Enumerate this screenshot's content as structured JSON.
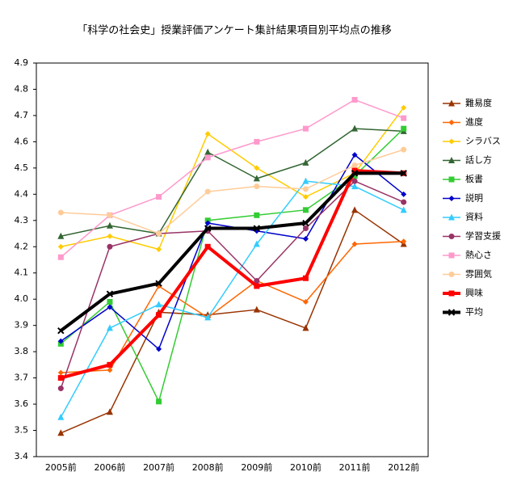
{
  "chart_data": {
    "type": "line",
    "title": "「科学の社会史」授業評価アンケート集計結果項目別平均点の推移",
    "categories": [
      "2005前",
      "2006前",
      "2007前",
      "2008前",
      "2009前",
      "2010前",
      "2011前",
      "2012前"
    ],
    "ylim": [
      3.4,
      4.9
    ],
    "yticks": [
      3.4,
      3.5,
      3.6,
      3.7,
      3.8,
      3.9,
      {
        "value": 4,
        "label": "4.0"
      },
      4.1,
      4.2,
      4.3,
      4.4,
      4.5,
      4.6,
      4.7,
      4.8,
      4.9
    ],
    "grid": false,
    "legend": "right",
    "series": [
      {
        "name": "難易度",
        "color": "#993300",
        "marker": "triangle",
        "line_width": 1.5,
        "values": [
          3.49,
          3.57,
          3.95,
          3.94,
          3.96,
          3.89,
          4.34,
          4.21
        ]
      },
      {
        "name": "進度",
        "color": "#ff6600",
        "marker": "diamond",
        "line_width": 1.5,
        "values": [
          3.72,
          3.73,
          4.05,
          3.93,
          4.07,
          3.99,
          4.21,
          4.22
        ]
      },
      {
        "name": "シラバス",
        "color": "#ffcc00",
        "marker": "diamond",
        "line_width": 1.5,
        "values": [
          4.2,
          4.24,
          4.19,
          4.63,
          4.5,
          4.39,
          4.48,
          4.73
        ]
      },
      {
        "name": "話し方",
        "color": "#336633",
        "marker": "triangle",
        "line_width": 1.5,
        "values": [
          4.24,
          4.28,
          4.25,
          4.56,
          4.46,
          4.52,
          4.65,
          4.64
        ]
      },
      {
        "name": "板書",
        "color": "#33cc33",
        "marker": "square",
        "line_width": 1.5,
        "values": [
          3.83,
          3.99,
          3.61,
          4.3,
          4.32,
          4.34,
          4.47,
          4.65
        ]
      },
      {
        "name": "説明",
        "color": "#0000cc",
        "marker": "diamond",
        "line_width": 1.5,
        "values": [
          3.84,
          3.97,
          3.81,
          4.29,
          4.26,
          4.23,
          4.55,
          4.4
        ]
      },
      {
        "name": "資料",
        "color": "#33ccff",
        "marker": "triangle",
        "line_width": 1.5,
        "values": [
          3.55,
          3.89,
          3.98,
          3.93,
          4.21,
          4.45,
          4.43,
          4.34
        ]
      },
      {
        "name": "学習支援",
        "color": "#993366",
        "marker": "circle",
        "line_width": 1.5,
        "values": [
          3.66,
          4.2,
          4.25,
          4.26,
          4.07,
          4.27,
          4.45,
          4.37
        ]
      },
      {
        "name": "熱心さ",
        "color": "#ff99cc",
        "marker": "square",
        "line_width": 1.5,
        "values": [
          4.16,
          4.32,
          4.39,
          4.54,
          4.6,
          4.65,
          4.76,
          4.69
        ]
      },
      {
        "name": "雰囲気",
        "color": "#ffcc99",
        "marker": "circle",
        "line_width": 1.5,
        "values": [
          4.33,
          4.32,
          4.25,
          4.41,
          4.43,
          4.42,
          4.51,
          4.57
        ]
      },
      {
        "name": "興味",
        "color": "#ff0000",
        "marker": "square",
        "line_width": 4,
        "values": [
          3.7,
          3.75,
          3.94,
          4.2,
          4.05,
          4.08,
          4.49,
          4.48
        ]
      },
      {
        "name": "平均",
        "color": "#000000",
        "marker": "x",
        "line_width": 4,
        "values": [
          3.88,
          4.02,
          4.06,
          4.27,
          4.27,
          4.29,
          4.48,
          4.48
        ]
      }
    ]
  }
}
